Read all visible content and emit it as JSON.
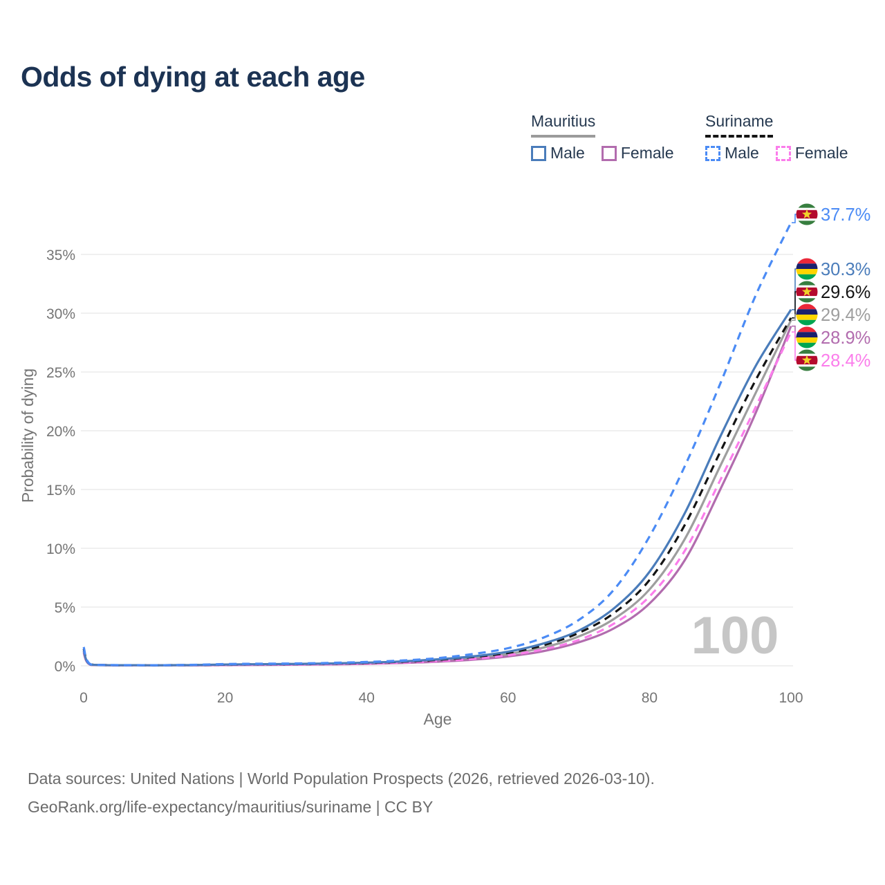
{
  "page": {
    "title": "Odds of dying at each age"
  },
  "legend": {
    "groups": [
      {
        "label": "Mauritius",
        "line_style": "solid",
        "underline_color": "#9b9b9b",
        "items": [
          {
            "label": "Male",
            "color": "#4a7cba",
            "dash": false
          },
          {
            "label": "Female",
            "color": "#b26cae",
            "dash": false
          }
        ]
      },
      {
        "label": "Suriname",
        "line_style": "dashed",
        "underline_color": "#141414",
        "items": [
          {
            "label": "Male",
            "color": "#4b8bf5",
            "dash": true
          },
          {
            "label": "Female",
            "color": "#fb7deb",
            "dash": true
          }
        ]
      }
    ]
  },
  "chart_data": {
    "type": "line",
    "title": "Odds of dying at each age",
    "xlabel": "Age",
    "ylabel": "Probability of dying",
    "x_tick_labels": [
      "0",
      "20",
      "40",
      "60",
      "80",
      "100"
    ],
    "x_tick_values": [
      0,
      20,
      40,
      60,
      80,
      100
    ],
    "y_tick_labels": [
      "0%",
      "5%",
      "10%",
      "15%",
      "20%",
      "25%",
      "30%",
      "35%"
    ],
    "y_tick_values_pct": [
      0,
      5,
      10,
      15,
      20,
      25,
      30,
      35
    ],
    "xlim": [
      0,
      100
    ],
    "ylim_pct": [
      0,
      38
    ],
    "grid": "horizontal",
    "legend_position": "top-right",
    "watermark": "100",
    "x": [
      0,
      1,
      5,
      10,
      15,
      20,
      25,
      30,
      35,
      40,
      45,
      50,
      55,
      60,
      65,
      70,
      75,
      80,
      85,
      90,
      95,
      100
    ],
    "series": [
      {
        "name": "Suriname Male",
        "country": "Suriname",
        "sex": "Male",
        "flag": "suriname",
        "color": "#4b8bf5",
        "dash": true,
        "end_label": "37.7%",
        "values": [
          1.6,
          0.12,
          0.06,
          0.05,
          0.08,
          0.15,
          0.18,
          0.2,
          0.25,
          0.33,
          0.45,
          0.65,
          1.0,
          1.5,
          2.4,
          3.9,
          6.5,
          11.0,
          17.0,
          24.0,
          31.5,
          37.7
        ]
      },
      {
        "name": "Mauritius Male",
        "country": "Mauritius",
        "sex": "Male",
        "flag": "mauritius",
        "color": "#4a7cba",
        "dash": false,
        "end_label": "30.3%",
        "values": [
          1.3,
          0.1,
          0.05,
          0.04,
          0.06,
          0.11,
          0.14,
          0.16,
          0.2,
          0.27,
          0.38,
          0.55,
          0.8,
          1.2,
          1.9,
          3.0,
          4.9,
          8.0,
          13.0,
          19.5,
          25.5,
          30.3
        ]
      },
      {
        "name": "Suriname Both sexes",
        "country": "Suriname",
        "sex": "Both",
        "flag": "suriname",
        "color": "#141414",
        "dash": true,
        "end_label": "29.6%",
        "values": [
          1.45,
          0.11,
          0.05,
          0.04,
          0.06,
          0.1,
          0.13,
          0.15,
          0.19,
          0.25,
          0.35,
          0.5,
          0.75,
          1.1,
          1.75,
          2.8,
          4.5,
          7.3,
          12.0,
          18.2,
          24.3,
          29.6
        ]
      },
      {
        "name": "Mauritius Both sexes",
        "country": "Mauritius",
        "sex": "Both",
        "flag": "mauritius",
        "color": "#9e9e9e",
        "dash": false,
        "end_label": "29.4%",
        "values": [
          1.2,
          0.09,
          0.04,
          0.035,
          0.05,
          0.08,
          0.11,
          0.13,
          0.16,
          0.22,
          0.31,
          0.45,
          0.65,
          1.0,
          1.55,
          2.5,
          4.0,
          6.5,
          10.8,
          17.0,
          23.2,
          29.4
        ]
      },
      {
        "name": "Mauritius Female",
        "country": "Mauritius",
        "sex": "Female",
        "flag": "mauritius",
        "color": "#b26cae",
        "dash": false,
        "end_label": "28.9%",
        "values": [
          1.1,
          0.08,
          0.035,
          0.03,
          0.04,
          0.06,
          0.08,
          0.1,
          0.12,
          0.17,
          0.24,
          0.35,
          0.52,
          0.8,
          1.25,
          2.0,
          3.2,
          5.3,
          9.0,
          15.0,
          21.5,
          28.9
        ]
      },
      {
        "name": "Suriname Female",
        "country": "Suriname",
        "sex": "Female",
        "flag": "suriname",
        "color": "#fb7deb",
        "dash": true,
        "end_label": "28.4%",
        "values": [
          1.25,
          0.1,
          0.04,
          0.035,
          0.045,
          0.07,
          0.09,
          0.11,
          0.14,
          0.19,
          0.27,
          0.4,
          0.58,
          0.9,
          1.4,
          2.2,
          3.6,
          5.9,
          9.8,
          15.8,
          22.0,
          28.4
        ]
      }
    ],
    "flag_colors": {
      "mauritius": [
        "#EA2839",
        "#1A206D",
        "#FFD500",
        "#00A551"
      ],
      "suriname": {
        "green": "#377E3F",
        "white": "#FFFFFF",
        "red": "#B40A2D",
        "star": "#F0D32A"
      }
    }
  },
  "footer": {
    "line1": "Data sources: United Nations | World Population Prospects (2026, retrieved 2026-03-10).",
    "line2": "GeoRank.org/life-expectancy/mauritius/suriname | CC BY"
  },
  "colors": {
    "title_text": "#1c3353",
    "legend_text": "#263950",
    "axis_text": "#757575",
    "gridline": "#ebebeb",
    "watermark": "#c6c6c6",
    "footer_text": "#6b6b6b"
  }
}
